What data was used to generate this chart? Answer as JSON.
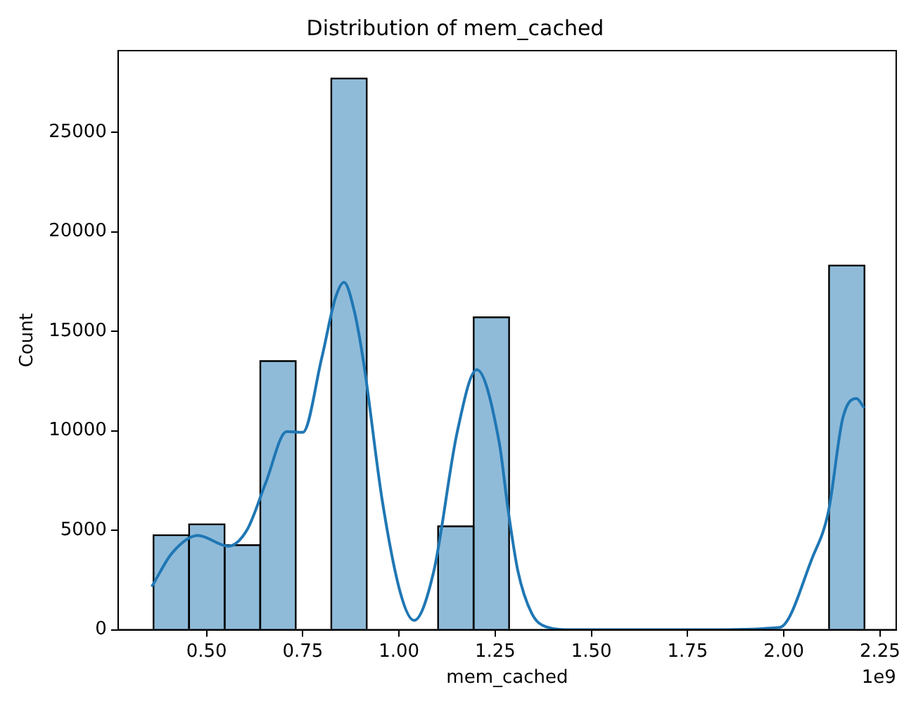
{
  "chart_data": {
    "type": "histogram",
    "title": "Distribution of mem_cached",
    "xlabel": "mem_cached",
    "ylabel": "Count",
    "annotations": [
      "1e9"
    ],
    "bins": [
      0.362,
      0.454,
      0.547,
      0.639,
      0.732,
      0.824,
      0.916,
      1.009,
      1.101,
      1.194,
      1.286,
      1.378,
      1.471,
      1.563,
      1.655,
      1.748,
      1.84,
      1.933,
      2.025,
      2.117,
      2.21
    ],
    "values": [
      4750,
      5300,
      4250,
      13500,
      0,
      27700,
      0,
      0,
      5200,
      15700,
      0,
      0,
      0,
      0,
      0,
      0,
      0,
      0,
      0,
      18300
    ],
    "color": "#8fbbd9",
    "series": [
      {
        "type": "line",
        "color": "#1f77b4",
        "x": [
          0.359,
          0.41,
          0.477,
          0.556,
          0.605,
          0.653,
          0.708,
          0.75,
          0.799,
          0.835,
          0.857,
          0.884,
          0.908,
          0.957,
          1.005,
          1.039,
          1.09,
          1.151,
          1.202,
          1.26,
          1.284,
          1.309,
          1.345,
          1.382,
          1.45,
          1.6,
          1.8,
          1.989,
          2.074,
          2.116,
          2.153,
          2.189,
          2.207
        ],
        "values": [
          2220,
          3850,
          4740,
          4200,
          5020,
          7350,
          9960,
          9920,
          13650,
          16690,
          17460,
          15990,
          13420,
          6420,
          1750,
          470,
          2920,
          9920,
          13070,
          9450,
          5950,
          2940,
          820,
          150,
          0,
          0,
          0,
          120,
          3620,
          5950,
          10620,
          11620,
          11200
        ]
      }
    ],
    "xlim": [
      0.27,
      2.292
    ],
    "ylim": [
      0,
      29100
    ],
    "xticks": [
      {
        "value": 0.5,
        "label": "0.50"
      },
      {
        "value": 0.75,
        "label": "0.75"
      },
      {
        "value": 1,
        "label": "1.00"
      },
      {
        "value": 1.25,
        "label": "1.25"
      },
      {
        "value": 1.5,
        "label": "1.50"
      },
      {
        "value": 1.75,
        "label": "1.75"
      },
      {
        "value": 2,
        "label": "2.00"
      },
      {
        "value": 2.25,
        "label": "2.25"
      }
    ],
    "yticks": [
      0,
      5000,
      10000,
      15000,
      20000,
      25000
    ],
    "grid": false,
    "legend": false
  }
}
